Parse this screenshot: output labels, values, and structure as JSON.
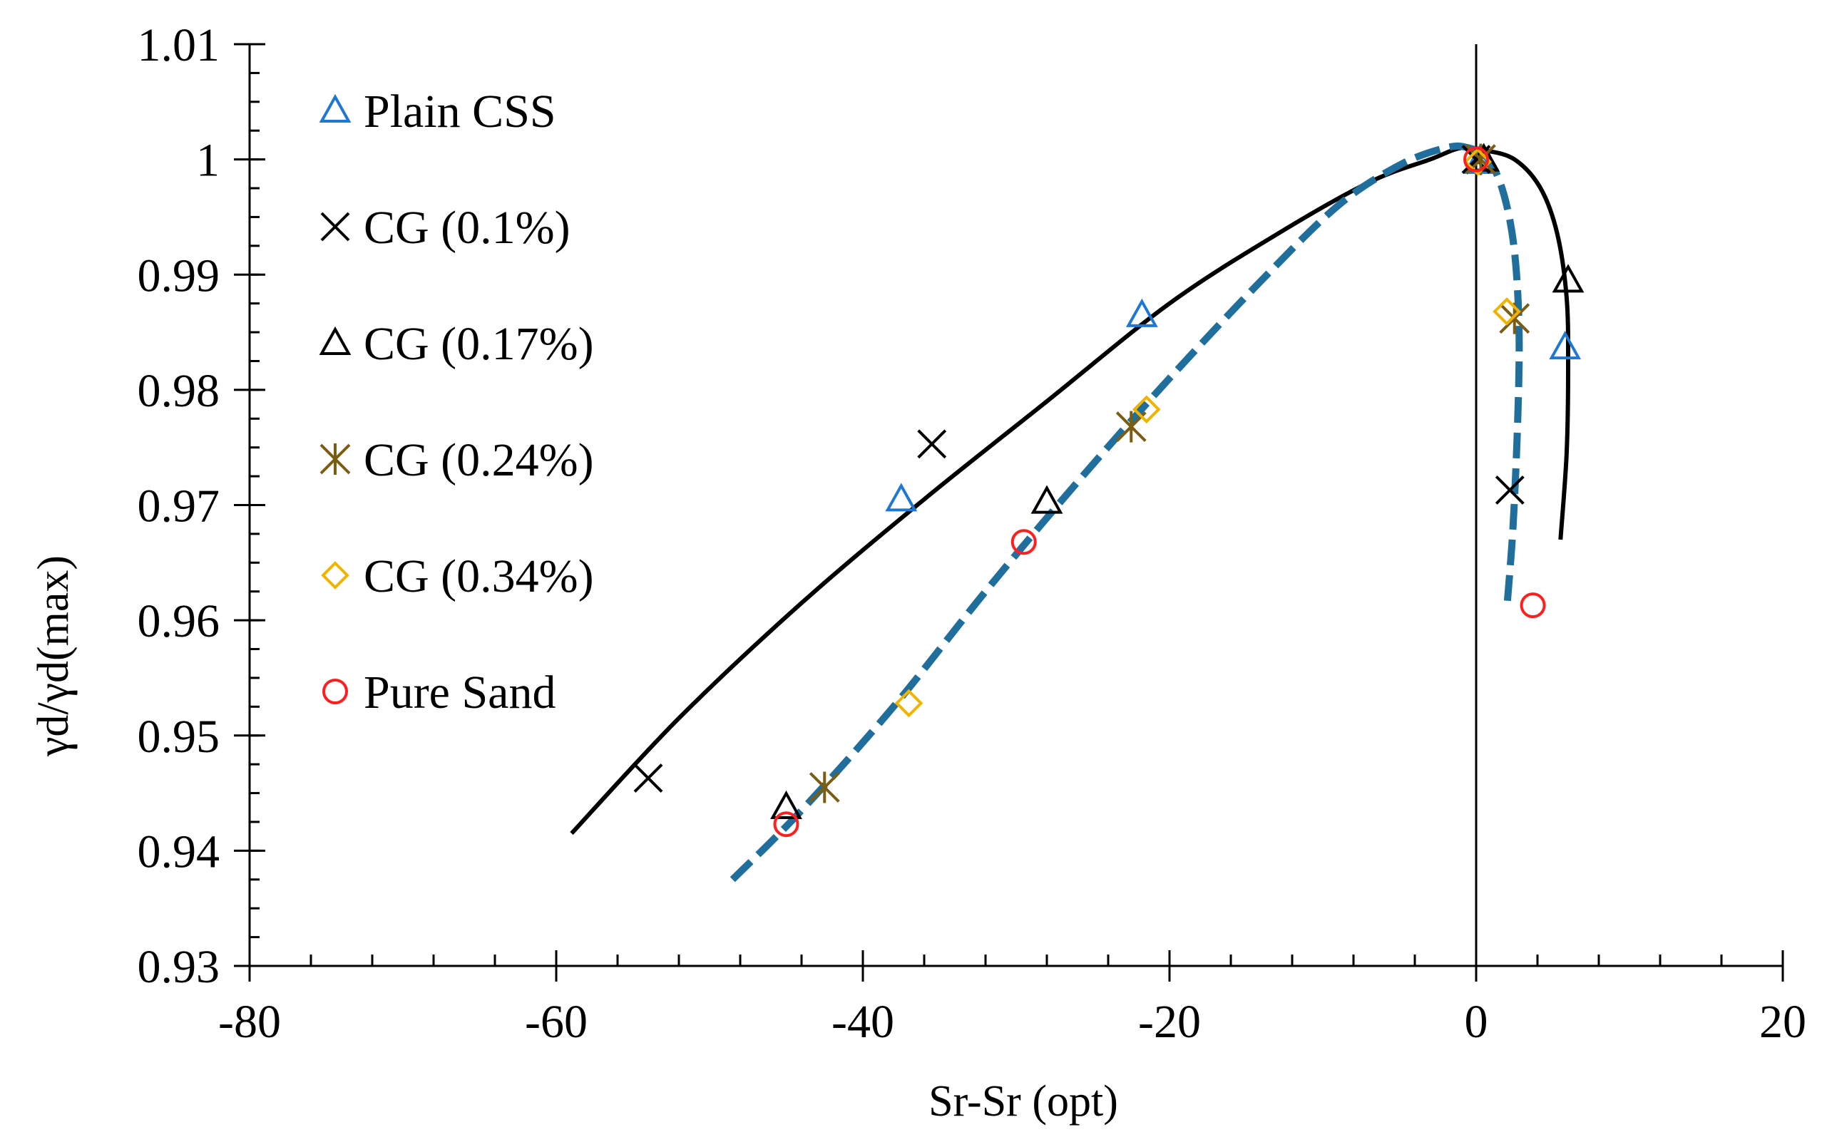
{
  "chart_data": {
    "type": "scatter",
    "title": "",
    "xlabel": "Sr-Sr (opt)",
    "ylabel": "γd/γd(max)",
    "xlim": [
      -80,
      20
    ],
    "ylim": [
      0.93,
      1.01
    ],
    "xticks": [
      -80,
      -60,
      -40,
      -20,
      0,
      20
    ],
    "xtick_labels": [
      "-80",
      "-60",
      "-40",
      "-20",
      "0",
      "20"
    ],
    "yticks": [
      0.93,
      0.94,
      0.95,
      0.96,
      0.97,
      0.98,
      0.99,
      1.0,
      1.01
    ],
    "ytick_labels": [
      "0.93",
      "0.94",
      "0.95",
      "0.96",
      "0.97",
      "0.98",
      "0.99",
      "1",
      "1.01"
    ],
    "x_minor_step": 4,
    "y_minor_step": 0.0025,
    "grid": false,
    "legend_position": "top-left",
    "series": [
      {
        "name": "Plain CSS",
        "marker": "triangle",
        "color": "#1f77d4",
        "x": [
          -37.5,
          -21.8,
          0.2,
          5.8
        ],
        "y": [
          0.9705,
          0.9865,
          0.9998,
          0.9837
        ]
      },
      {
        "name": "CG (0.1%)",
        "marker": "x",
        "color": "#000000",
        "x": [
          -54.0,
          -35.5,
          0.0,
          2.2
        ],
        "y": [
          0.9463,
          0.9753,
          1.0,
          0.9713
        ]
      },
      {
        "name": "CG (0.17%)",
        "marker": "triangle",
        "color": "#000000",
        "x": [
          -45.0,
          -28.0,
          0.5,
          6.0
        ],
        "y": [
          0.9438,
          0.9703,
          1.0,
          0.9895
        ]
      },
      {
        "name": "CG (0.24%)",
        "marker": "asterisk",
        "color": "#7a5c12",
        "x": [
          -42.5,
          -22.5,
          0.3,
          2.5
        ],
        "y": [
          0.9455,
          0.9768,
          1.0,
          0.9862
        ]
      },
      {
        "name": "CG (0.34%)",
        "marker": "diamond",
        "color": "#f0b400",
        "x": [
          -37.0,
          -21.5,
          0.1,
          2.0
        ],
        "y": [
          0.9528,
          0.9783,
          0.9998,
          0.9868
        ]
      },
      {
        "name": "Pure Sand",
        "marker": "circle",
        "color": "#ff1f1f",
        "x": [
          -45.0,
          -29.5,
          0.0,
          3.7
        ],
        "y": [
          0.9423,
          0.9668,
          1.0,
          0.9613
        ]
      }
    ],
    "curves": [
      {
        "name": "fit-solid",
        "style": "solid",
        "color": "#000000",
        "x": [
          -59,
          -52,
          -44,
          -36,
          -28,
          -20,
          -13,
          -7,
          -3,
          -1,
          0.5,
          2.5,
          4.2,
          5.3,
          5.9,
          6.0,
          5.9,
          5.5
        ],
        "y": [
          0.9415,
          0.9515,
          0.9615,
          0.9705,
          0.979,
          0.9875,
          0.9935,
          0.998,
          1.0,
          1.001,
          1.0008,
          1.0,
          0.9975,
          0.9935,
          0.988,
          0.982,
          0.9745,
          0.967
        ]
      },
      {
        "name": "fit-dashed",
        "style": "dashed",
        "color": "#1f6e9c",
        "x": [
          -48.5,
          -44,
          -38,
          -32,
          -26,
          -20,
          -14,
          -9,
          -5,
          -2,
          -0.5,
          0.8,
          1.8,
          2.5,
          2.8,
          2.7,
          2.4,
          2.0
        ],
        "y": [
          0.9375,
          0.9435,
          0.9525,
          0.9625,
          0.972,
          0.981,
          0.9895,
          0.996,
          0.9995,
          1.001,
          1.001,
          1.0,
          0.997,
          0.992,
          0.985,
          0.977,
          0.968,
          0.961
        ]
      }
    ]
  }
}
